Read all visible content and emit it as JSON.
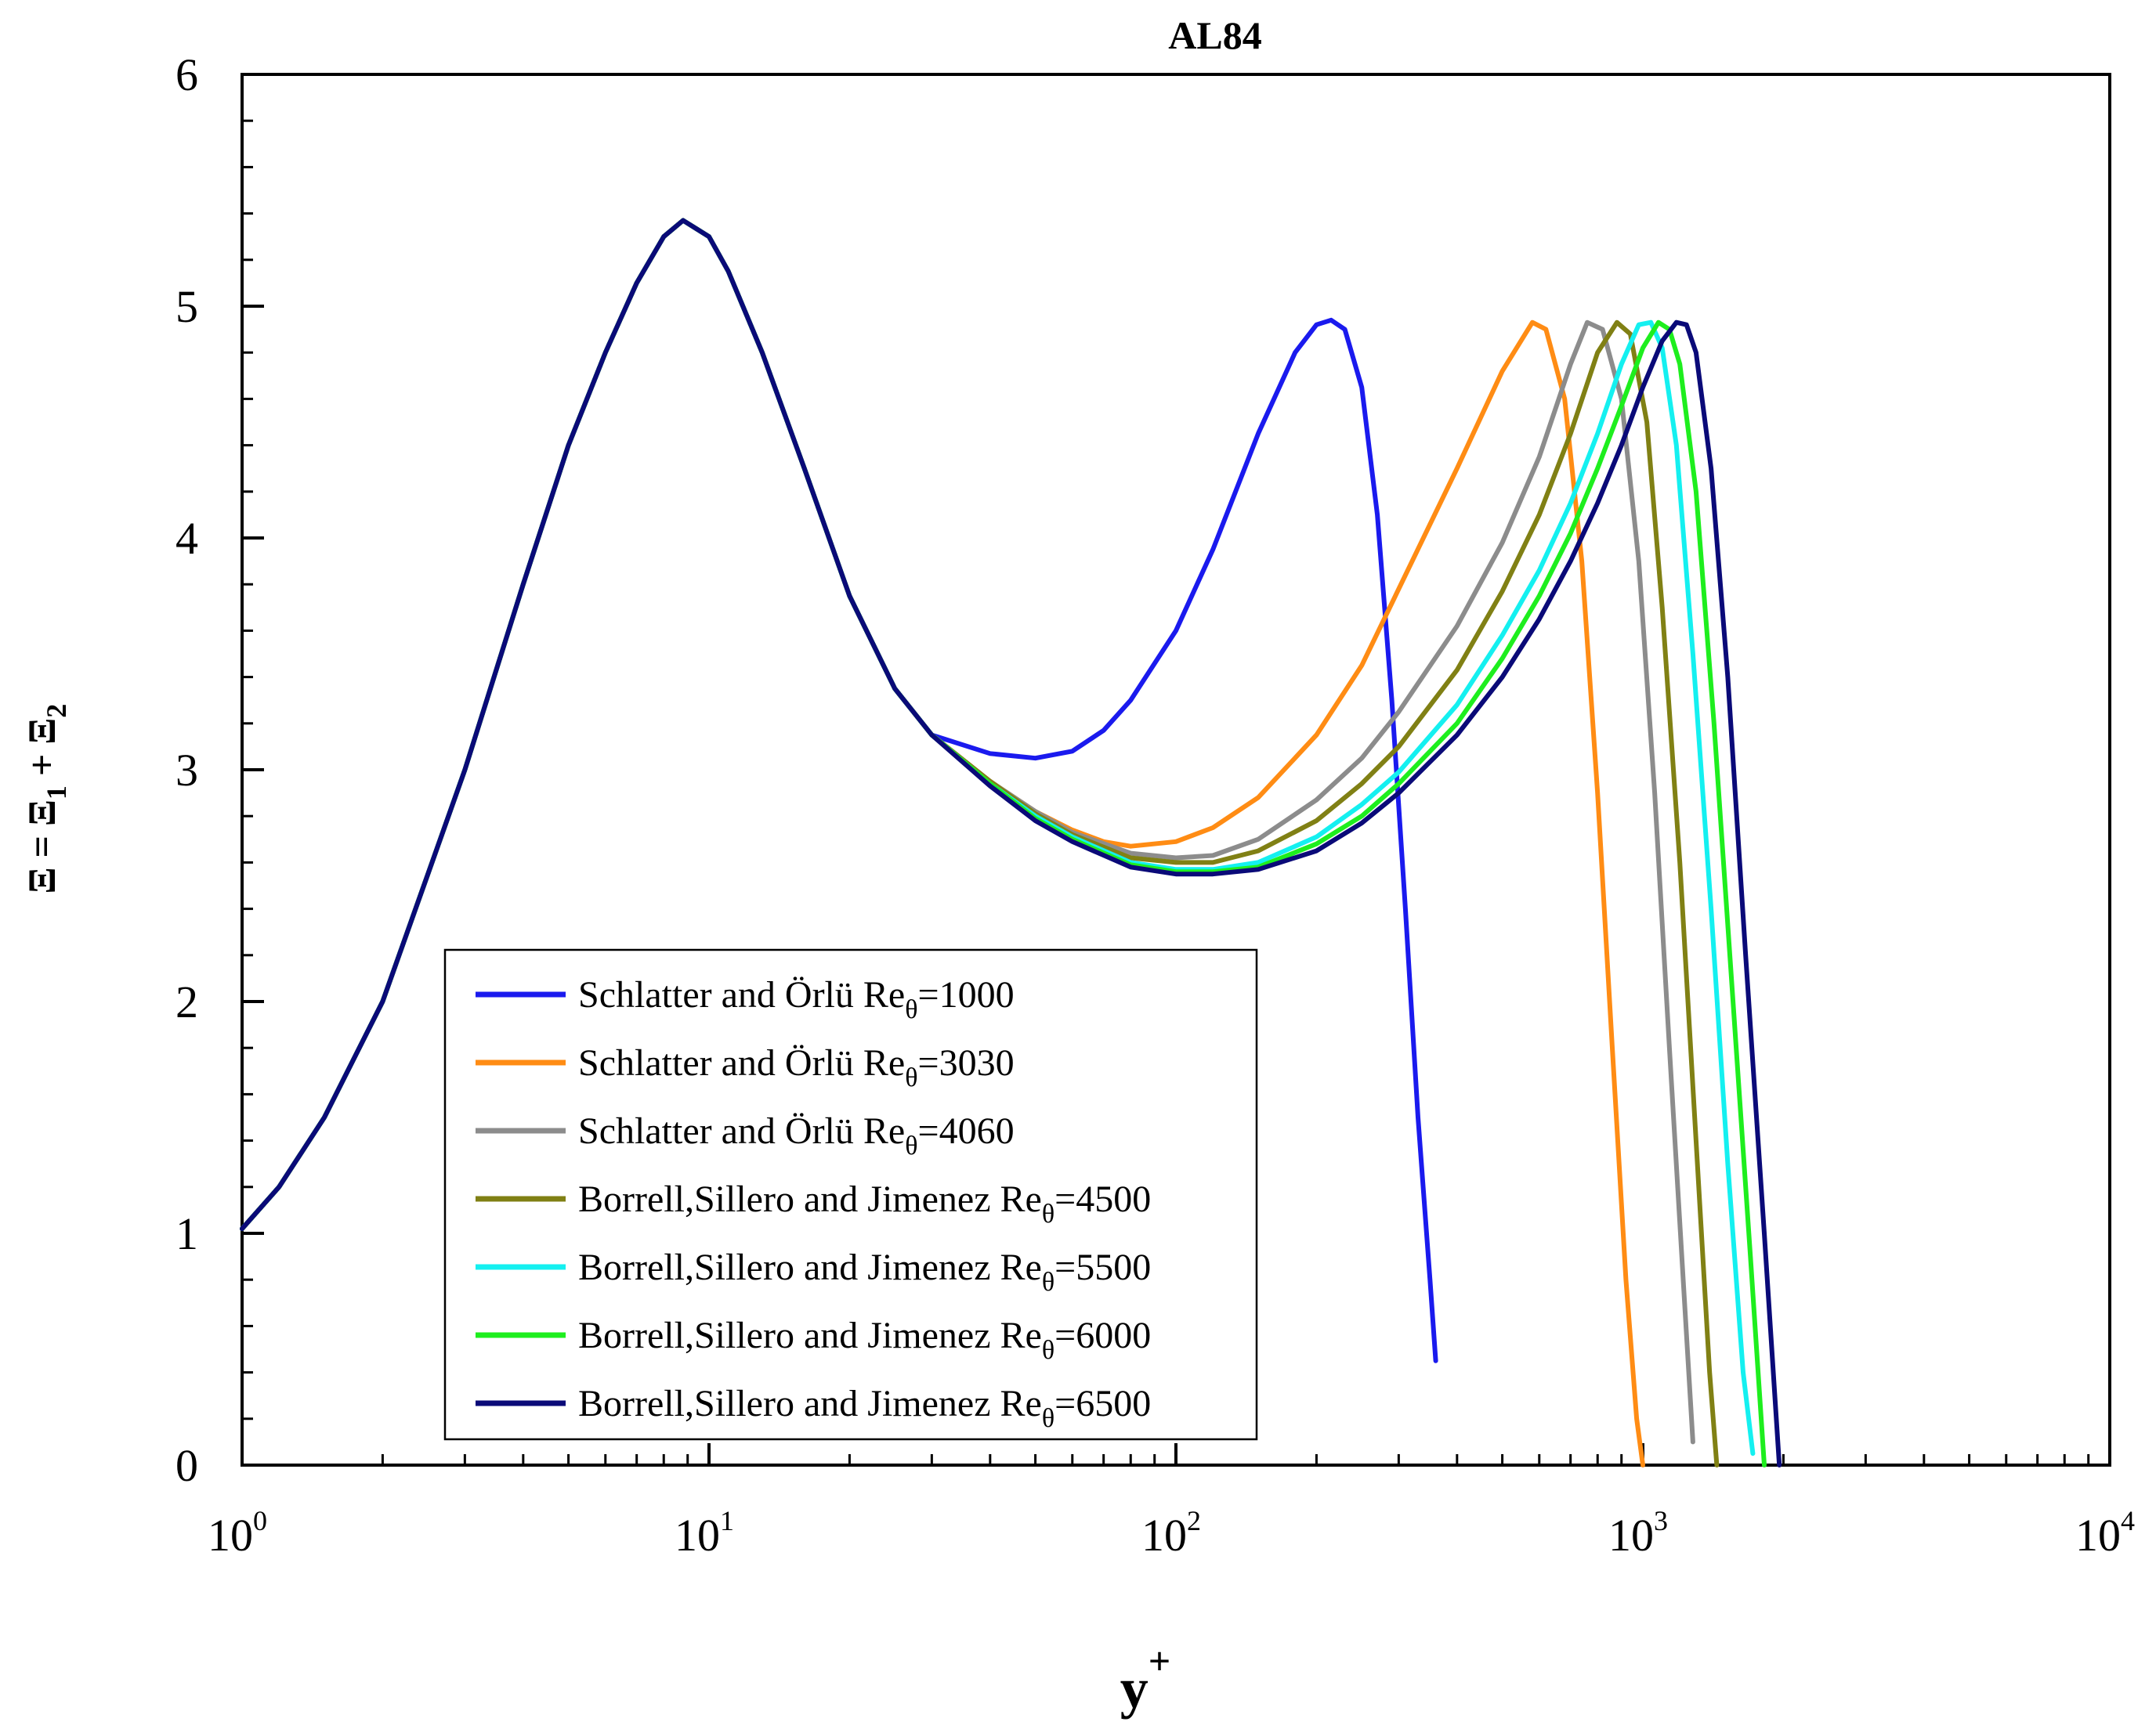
{
  "chart_data": {
    "type": "line",
    "title": "AL84",
    "xlabel": "y",
    "xlabel_sup": "+",
    "ylabel": {
      "lhs": "Ξ",
      "eq": "=",
      "t1": "Ξ",
      "s1": "1",
      "plus": "+",
      "t2": "Ξ",
      "s2": "2"
    },
    "xscale": "log",
    "xlim": [
      1,
      10000
    ],
    "ylim": [
      0,
      6
    ],
    "grid": false,
    "legend_position": "lower-left",
    "x_ticks": [
      {
        "base": "10",
        "exp": "0"
      },
      {
        "base": "10",
        "exp": "1"
      },
      {
        "base": "10",
        "exp": "2"
      },
      {
        "base": "10",
        "exp": "3"
      },
      {
        "base": "10",
        "exp": "4"
      }
    ],
    "y_ticks": [
      "0",
      "1",
      "2",
      "3",
      "4",
      "5",
      "6"
    ],
    "inner_peak": {
      "x": [
        1,
        1.2,
        1.5,
        2,
        2.5,
        3,
        4,
        5,
        6,
        7,
        8,
        8.8,
        10,
        11,
        13,
        16,
        20,
        25
      ],
      "y": [
        1.02,
        1.2,
        1.5,
        2.0,
        2.55,
        3.0,
        3.8,
        4.4,
        4.8,
        5.1,
        5.3,
        5.37,
        5.3,
        5.15,
        4.8,
        4.3,
        3.75,
        3.35
      ]
    },
    "series": [
      {
        "name": "Schlatter and Örlü Re",
        "sub": "θ",
        "value": "=1000",
        "color": "#1a1aee",
        "x": [
          30,
          40,
          50,
          60,
          70,
          80,
          100,
          120,
          150,
          180,
          200,
          215,
          230,
          250,
          270,
          290,
          310,
          330,
          350,
          360
        ],
        "y": [
          3.15,
          3.07,
          3.05,
          3.08,
          3.17,
          3.3,
          3.6,
          3.95,
          4.45,
          4.8,
          4.92,
          4.94,
          4.9,
          4.65,
          4.1,
          3.3,
          2.4,
          1.5,
          0.8,
          0.45
        ]
      },
      {
        "name": "Schlatter and Örlü Re",
        "sub": "θ",
        "value": "=3030",
        "color": "#ff8c14",
        "x": [
          30,
          40,
          50,
          60,
          70,
          80,
          100,
          120,
          150,
          200,
          250,
          300,
          400,
          500,
          580,
          620,
          680,
          740,
          800,
          860,
          920,
          970,
          1000
        ],
        "y": [
          3.15,
          2.95,
          2.82,
          2.74,
          2.69,
          2.67,
          2.69,
          2.75,
          2.88,
          3.15,
          3.45,
          3.78,
          4.3,
          4.72,
          4.93,
          4.9,
          4.6,
          3.9,
          2.9,
          1.8,
          0.8,
          0.2,
          0.0
        ]
      },
      {
        "name": "Schlatter and Örlü Re",
        "sub": "θ",
        "value": "=4060",
        "color": "#8c8c8c",
        "x": [
          30,
          40,
          50,
          60,
          80,
          100,
          120,
          150,
          200,
          250,
          300,
          400,
          500,
          600,
          700,
          760,
          820,
          900,
          980,
          1060,
          1140,
          1220,
          1280
        ],
        "y": [
          3.15,
          2.95,
          2.82,
          2.73,
          2.64,
          2.62,
          2.63,
          2.7,
          2.87,
          3.05,
          3.25,
          3.62,
          3.98,
          4.35,
          4.75,
          4.93,
          4.9,
          4.6,
          3.9,
          2.9,
          1.8,
          0.8,
          0.1
        ]
      },
      {
        "name": "Borrell,Sillero and Jimenez Re",
        "sub": "θ",
        "value": "=4500",
        "color": "#808014",
        "x": [
          30,
          40,
          50,
          60,
          80,
          100,
          120,
          150,
          200,
          250,
          300,
          400,
          500,
          600,
          700,
          800,
          880,
          940,
          1020,
          1100,
          1200,
          1300,
          1390,
          1440
        ],
        "y": [
          3.15,
          2.95,
          2.81,
          2.72,
          2.62,
          2.6,
          2.6,
          2.65,
          2.78,
          2.94,
          3.1,
          3.43,
          3.77,
          4.1,
          4.45,
          4.8,
          4.93,
          4.88,
          4.5,
          3.7,
          2.6,
          1.4,
          0.4,
          0.0
        ]
      },
      {
        "name": "Borrell,Sillero and Jimenez Re",
        "sub": "θ",
        "value": "=5500",
        "color": "#14f0f0",
        "x": [
          30,
          40,
          50,
          60,
          80,
          100,
          120,
          150,
          200,
          250,
          300,
          400,
          500,
          600,
          700,
          800,
          900,
          980,
          1040,
          1100,
          1180,
          1280,
          1400,
          1520,
          1640,
          1720
        ],
        "y": [
          3.15,
          2.94,
          2.8,
          2.71,
          2.6,
          2.57,
          2.57,
          2.6,
          2.71,
          2.85,
          2.99,
          3.28,
          3.58,
          3.86,
          4.15,
          4.45,
          4.75,
          4.92,
          4.93,
          4.82,
          4.4,
          3.5,
          2.4,
          1.3,
          0.4,
          0.05
        ]
      },
      {
        "name": "Borrell,Sillero and Jimenez Re",
        "sub": "θ",
        "value": "=6000",
        "color": "#1eee1e",
        "x": [
          30,
          40,
          50,
          60,
          80,
          100,
          120,
          150,
          200,
          250,
          300,
          400,
          500,
          600,
          700,
          800,
          900,
          1000,
          1080,
          1140,
          1200,
          1300,
          1420,
          1560,
          1700,
          1820
        ],
        "y": [
          3.15,
          2.94,
          2.79,
          2.7,
          2.59,
          2.56,
          2.56,
          2.58,
          2.68,
          2.8,
          2.94,
          3.2,
          3.48,
          3.75,
          4.02,
          4.3,
          4.57,
          4.82,
          4.93,
          4.9,
          4.75,
          4.2,
          3.2,
          2.0,
          0.9,
          0.0
        ]
      },
      {
        "name": "Borrell,Sillero and Jimenez Re",
        "sub": "θ",
        "value": "=6500",
        "color": "#0a0a78",
        "x": [
          30,
          40,
          50,
          60,
          80,
          100,
          120,
          150,
          200,
          250,
          300,
          400,
          500,
          600,
          700,
          800,
          900,
          1000,
          1100,
          1180,
          1240,
          1300,
          1400,
          1520,
          1660,
          1820,
          1960
        ],
        "y": [
          3.15,
          2.93,
          2.78,
          2.69,
          2.58,
          2.55,
          2.55,
          2.57,
          2.65,
          2.77,
          2.9,
          3.15,
          3.4,
          3.65,
          3.9,
          4.15,
          4.4,
          4.65,
          4.85,
          4.93,
          4.92,
          4.8,
          4.3,
          3.4,
          2.2,
          1.0,
          0.0
        ]
      }
    ]
  }
}
